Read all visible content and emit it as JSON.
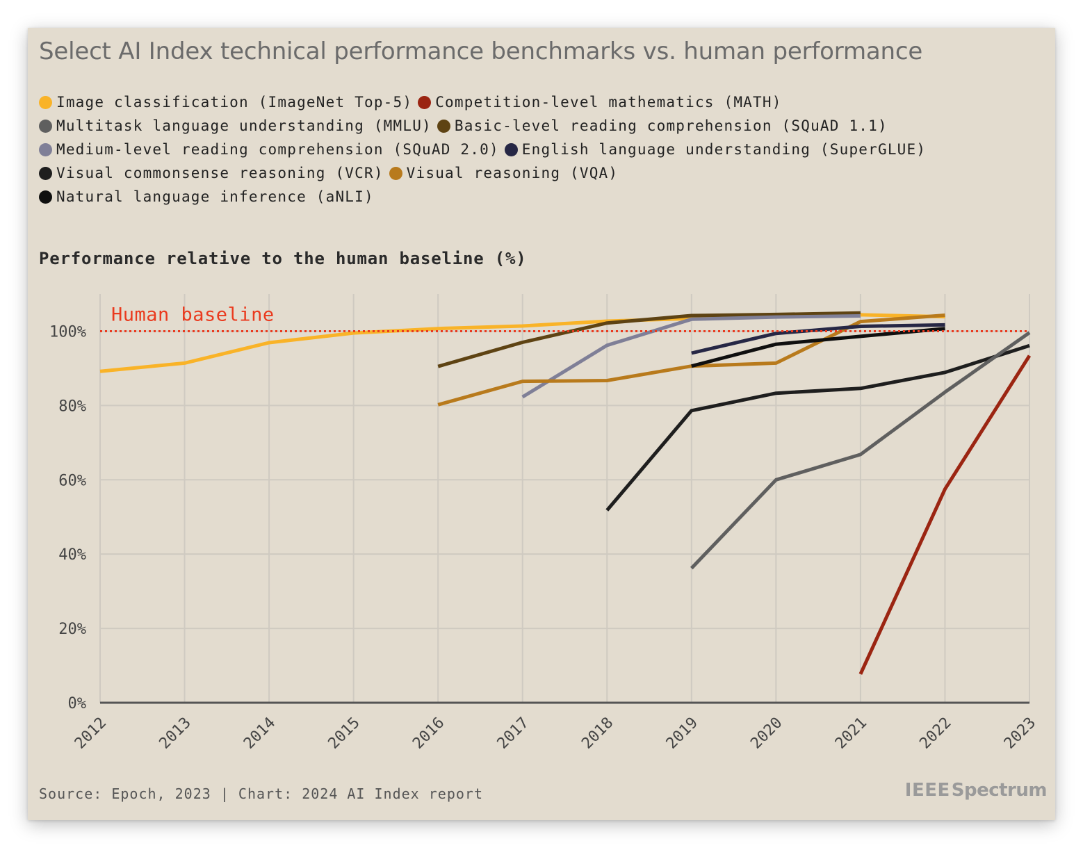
{
  "title": "Select AI Index technical performance benchmarks vs. human performance",
  "legend": [
    [
      {
        "label": "Image classification (ImageNet Top-5)",
        "color": "#f9b328"
      },
      {
        "label": "Competition-level mathematics (MATH)",
        "color": "#9b2512"
      }
    ],
    [
      {
        "label": "Multitask language understanding (MMLU)",
        "color": "#5f5f5f"
      },
      {
        "label": "Basic-level reading comprehension (SQuAD 1.1)",
        "color": "#5e4313"
      }
    ],
    [
      {
        "label": "Medium-level reading comprehension (SQuAD 2.0)",
        "color": "#7f7f97"
      },
      {
        "label": "English language understanding (SuperGLUE)",
        "color": "#262745"
      }
    ],
    [
      {
        "label": "Visual commonsense reasoning (VCR)",
        "color": "#1e1e1e"
      },
      {
        "label": "Visual reasoning (VQA)",
        "color": "#b87a1c"
      }
    ],
    [
      {
        "label": "Natural language inference (aNLI)",
        "color": "#0f0f0f"
      }
    ]
  ],
  "y_axis_title": "Performance relative to the human baseline (%)",
  "baseline_label": "Human baseline",
  "source": "Source: Epoch, 2023 | Chart: 2024 AI Index report",
  "brand": {
    "ieee": "IEEE",
    "spectrum": "Spectrum"
  },
  "chart_data": {
    "type": "line",
    "x": [
      2012,
      2013,
      2014,
      2015,
      2016,
      2017,
      2018,
      2019,
      2020,
      2021,
      2022,
      2023
    ],
    "x_tick_labels": [
      "2012",
      "2013",
      "2014",
      "2015",
      "2016",
      "2017",
      "2018",
      "2019",
      "2020",
      "2021",
      "2022",
      "2023"
    ],
    "y_ticks": [
      0,
      20,
      40,
      60,
      80,
      100
    ],
    "y_tick_labels": [
      "0%",
      "20%",
      "40%",
      "60%",
      "80%",
      "100%"
    ],
    "ylim": [
      0,
      110
    ],
    "xlim": [
      2012,
      2023
    ],
    "baseline": 100,
    "baseline_color": "#ea3a1e",
    "grid": true,
    "series": [
      {
        "name": "Image classification (ImageNet Top-5)",
        "color": "#f9b328",
        "points": [
          [
            2012,
            89.2
          ],
          [
            2013,
            91.4
          ],
          [
            2014,
            96.9
          ],
          [
            2015,
            99.5
          ],
          [
            2016,
            100.7
          ],
          [
            2017,
            101.4
          ],
          [
            2018,
            102.7
          ],
          [
            2019,
            103.4
          ],
          [
            2020,
            104.1
          ],
          [
            2021,
            104.4
          ],
          [
            2022,
            103.9
          ]
        ]
      },
      {
        "name": "Basic-level reading comprehension (SQuAD 1.1)",
        "color": "#5e4313",
        "points": [
          [
            2016,
            90.5
          ],
          [
            2017,
            97.0
          ],
          [
            2018,
            102.2
          ],
          [
            2019,
            104.2
          ],
          [
            2020,
            104.5
          ],
          [
            2021,
            104.9
          ]
        ]
      },
      {
        "name": "Medium-level reading comprehension (SQuAD 2.0)",
        "color": "#7f7f97",
        "points": [
          [
            2017,
            82.3
          ],
          [
            2018,
            96.2
          ],
          [
            2019,
            103.2
          ],
          [
            2020,
            103.8
          ],
          [
            2021,
            104.1
          ]
        ]
      },
      {
        "name": "Visual reasoning (VQA)",
        "color": "#b87a1c",
        "points": [
          [
            2016,
            80.2
          ],
          [
            2017,
            86.5
          ],
          [
            2018,
            86.7
          ],
          [
            2019,
            90.6
          ],
          [
            2020,
            91.4
          ],
          [
            2021,
            102.6
          ],
          [
            2022,
            104.3
          ]
        ]
      },
      {
        "name": "English language understanding (SuperGLUE)",
        "color": "#262745",
        "points": [
          [
            2019,
            94.1
          ],
          [
            2020,
            99.4
          ],
          [
            2021,
            101.3
          ],
          [
            2022,
            101.7
          ]
        ]
      },
      {
        "name": "Natural language inference (aNLI)",
        "color": "#0f0f0f",
        "points": [
          [
            2019,
            90.6
          ],
          [
            2020,
            96.5
          ],
          [
            2021,
            98.6
          ],
          [
            2022,
            100.7
          ]
        ]
      },
      {
        "name": "Visual commonsense reasoning (VCR)",
        "color": "#1e1e1e",
        "points": [
          [
            2018,
            51.8
          ],
          [
            2019,
            78.6
          ],
          [
            2020,
            83.3
          ],
          [
            2021,
            84.6
          ],
          [
            2022,
            88.9
          ],
          [
            2023,
            96.1
          ]
        ]
      },
      {
        "name": "Multitask language understanding (MMLU)",
        "color": "#5f5f5f",
        "points": [
          [
            2019,
            36.2
          ],
          [
            2020,
            60.0
          ],
          [
            2021,
            66.8
          ],
          [
            2022,
            83.6
          ],
          [
            2023,
            99.6
          ]
        ]
      },
      {
        "name": "Competition-level mathematics (MATH)",
        "color": "#9b2512",
        "points": [
          [
            2021,
            7.7
          ],
          [
            2022,
            57.5
          ],
          [
            2023,
            93.4
          ]
        ]
      }
    ]
  }
}
